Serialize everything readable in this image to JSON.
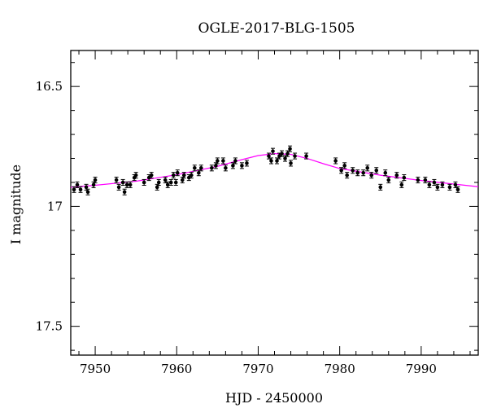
{
  "chart_data": {
    "type": "scatter",
    "title": "OGLE-2017-BLG-1505",
    "xlabel": "HJD - 2450000",
    "ylabel": "I magnitude",
    "xlim": [
      7947,
      7997
    ],
    "ylim": [
      17.62,
      16.35
    ],
    "y_inverted": true,
    "xticks": [
      7950,
      7960,
      7970,
      7980,
      7990
    ],
    "yticks": [
      16.5,
      17,
      17.5
    ],
    "ytick_labels": [
      "16.5",
      "17",
      "17.5"
    ],
    "grid": false,
    "colors": {
      "points": "#000000",
      "model": "#ff00ff",
      "frame": "#000000"
    },
    "series": [
      {
        "type": "scatter",
        "error": 0.012,
        "points": [
          [
            7947.4,
            16.93
          ],
          [
            7947.8,
            16.91
          ],
          [
            7948.2,
            16.93
          ],
          [
            7948.9,
            16.92
          ],
          [
            7949.1,
            16.94
          ],
          [
            7949.8,
            16.91
          ],
          [
            7950.0,
            16.89
          ],
          [
            7952.6,
            16.89
          ],
          [
            7952.9,
            16.92
          ],
          [
            7953.4,
            16.9
          ],
          [
            7953.6,
            16.94
          ],
          [
            7953.9,
            16.91
          ],
          [
            7954.3,
            16.91
          ],
          [
            7954.8,
            16.88
          ],
          [
            7955.0,
            16.87
          ],
          [
            7956.0,
            16.9
          ],
          [
            7956.6,
            16.88
          ],
          [
            7956.9,
            16.87
          ],
          [
            7957.6,
            16.92
          ],
          [
            7957.8,
            16.9
          ],
          [
            7958.6,
            16.89
          ],
          [
            7958.9,
            16.91
          ],
          [
            7959.3,
            16.9
          ],
          [
            7959.6,
            16.87
          ],
          [
            7959.9,
            16.9
          ],
          [
            7960.1,
            16.86
          ],
          [
            7960.7,
            16.89
          ],
          [
            7960.9,
            16.87
          ],
          [
            7961.5,
            16.88
          ],
          [
            7961.8,
            16.87
          ],
          [
            7962.2,
            16.84
          ],
          [
            7962.7,
            16.86
          ],
          [
            7963.0,
            16.84
          ],
          [
            7964.3,
            16.84
          ],
          [
            7964.8,
            16.83
          ],
          [
            7965.0,
            16.81
          ],
          [
            7965.7,
            16.81
          ],
          [
            7966.0,
            16.84
          ],
          [
            7966.9,
            16.83
          ],
          [
            7967.2,
            16.81
          ],
          [
            7968.0,
            16.83
          ],
          [
            7968.6,
            16.82
          ],
          [
            7971.3,
            16.79
          ],
          [
            7971.6,
            16.81
          ],
          [
            7971.8,
            16.77
          ],
          [
            7972.3,
            16.81
          ],
          [
            7972.6,
            16.79
          ],
          [
            7972.9,
            16.78
          ],
          [
            7973.3,
            16.8
          ],
          [
            7973.6,
            16.78
          ],
          [
            7973.9,
            16.76
          ],
          [
            7974.0,
            16.82
          ],
          [
            7974.5,
            16.79
          ],
          [
            7975.9,
            16.79
          ],
          [
            7979.5,
            16.81
          ],
          [
            7980.2,
            16.85
          ],
          [
            7980.6,
            16.83
          ],
          [
            7980.9,
            16.87
          ],
          [
            7981.6,
            16.85
          ],
          [
            7982.2,
            16.86
          ],
          [
            7982.9,
            16.86
          ],
          [
            7983.4,
            16.84
          ],
          [
            7983.9,
            16.87
          ],
          [
            7984.5,
            16.85
          ],
          [
            7985.0,
            16.92
          ],
          [
            7985.6,
            16.86
          ],
          [
            7986.0,
            16.89
          ],
          [
            7987.0,
            16.87
          ],
          [
            7987.6,
            16.91
          ],
          [
            7987.9,
            16.88
          ],
          [
            7989.6,
            16.89
          ],
          [
            7990.5,
            16.89
          ],
          [
            7991.0,
            16.91
          ],
          [
            7991.6,
            16.9
          ],
          [
            7992.0,
            16.92
          ],
          [
            7992.6,
            16.91
          ],
          [
            7993.5,
            16.92
          ],
          [
            7994.2,
            16.91
          ],
          [
            7994.5,
            16.93
          ]
        ]
      },
      {
        "type": "line",
        "points": [
          [
            7947.0,
            16.92
          ],
          [
            7950.0,
            16.912
          ],
          [
            7955.0,
            16.895
          ],
          [
            7960.0,
            16.868
          ],
          [
            7965.0,
            16.833
          ],
          [
            7968.0,
            16.805
          ],
          [
            7970.0,
            16.788
          ],
          [
            7972.0,
            16.78
          ],
          [
            7974.0,
            16.783
          ],
          [
            7976.0,
            16.8
          ],
          [
            7978.0,
            16.822
          ],
          [
            7980.0,
            16.842
          ],
          [
            7985.0,
            16.87
          ],
          [
            7990.0,
            16.892
          ],
          [
            7997.0,
            16.918
          ]
        ]
      }
    ]
  }
}
